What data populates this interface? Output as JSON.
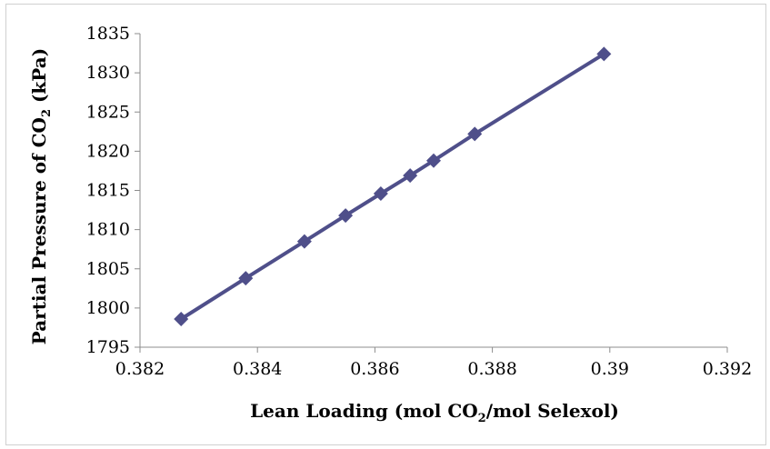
{
  "chart_data": {
    "type": "line",
    "title": "",
    "xlabel": {
      "before": "Lean Loading (mol CO",
      "sub": "2",
      "after": "/mol Selexol)"
    },
    "ylabel": {
      "before": "Partial Pressure of CO",
      "sub": "2",
      "after": " (kPa)"
    },
    "xlim": [
      0.382,
      0.392
    ],
    "ylim": [
      1795,
      1835
    ],
    "xticks": [
      0.382,
      0.384,
      0.386,
      0.388,
      0.39,
      0.392
    ],
    "xtick_labels": [
      "0.382",
      "0.384",
      "0.386",
      "0.388",
      "0.39",
      "0.392"
    ],
    "yticks": [
      1795,
      1800,
      1805,
      1810,
      1815,
      1820,
      1825,
      1830,
      1835
    ],
    "ytick_labels": [
      "1795",
      "1800",
      "1805",
      "1810",
      "1815",
      "1820",
      "1825",
      "1830",
      "1835"
    ],
    "grid": false,
    "series": [
      {
        "color": "#4f4f8a",
        "marker": "diamond",
        "x": [
          0.3827,
          0.3838,
          0.3848,
          0.3855,
          0.3861,
          0.3866,
          0.387,
          0.3877,
          0.3899
        ],
        "y": [
          1798.6,
          1803.8,
          1808.5,
          1811.8,
          1814.6,
          1816.9,
          1818.8,
          1822.2,
          1832.4
        ]
      }
    ]
  }
}
